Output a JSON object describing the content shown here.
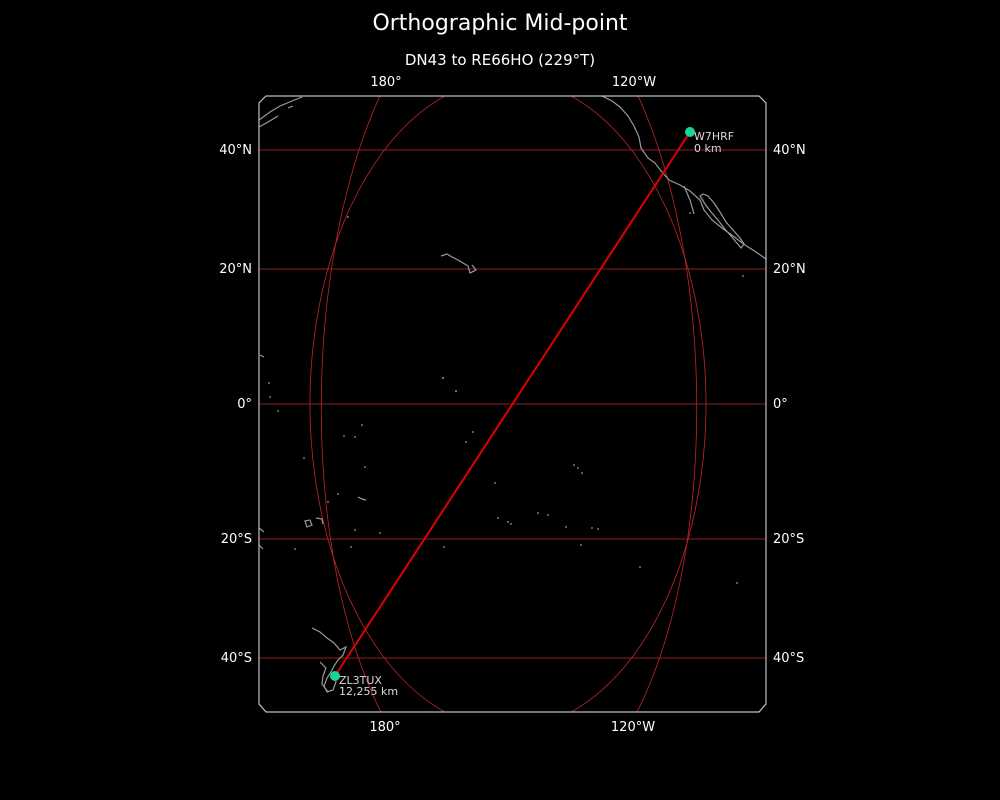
{
  "title": "Orthographic Mid-point",
  "subtitle": "DN43 to RE66HO (229°T)",
  "map": {
    "projection": "orthographic",
    "grid_color": "#c0262a",
    "coastline_color": "#9a9a9a",
    "path_color": "#e00000",
    "marker_color": "#1fd19a",
    "lon_ticks": [
      "180°",
      "120°W"
    ],
    "lat_ticks": [
      "40°N",
      "20°N",
      "0°",
      "20°S",
      "40°S"
    ]
  },
  "stations": {
    "start": {
      "callsign": "W7HRF",
      "distance": "0 km"
    },
    "end": {
      "callsign": "ZL3TUX",
      "distance": "12,255 km"
    }
  }
}
